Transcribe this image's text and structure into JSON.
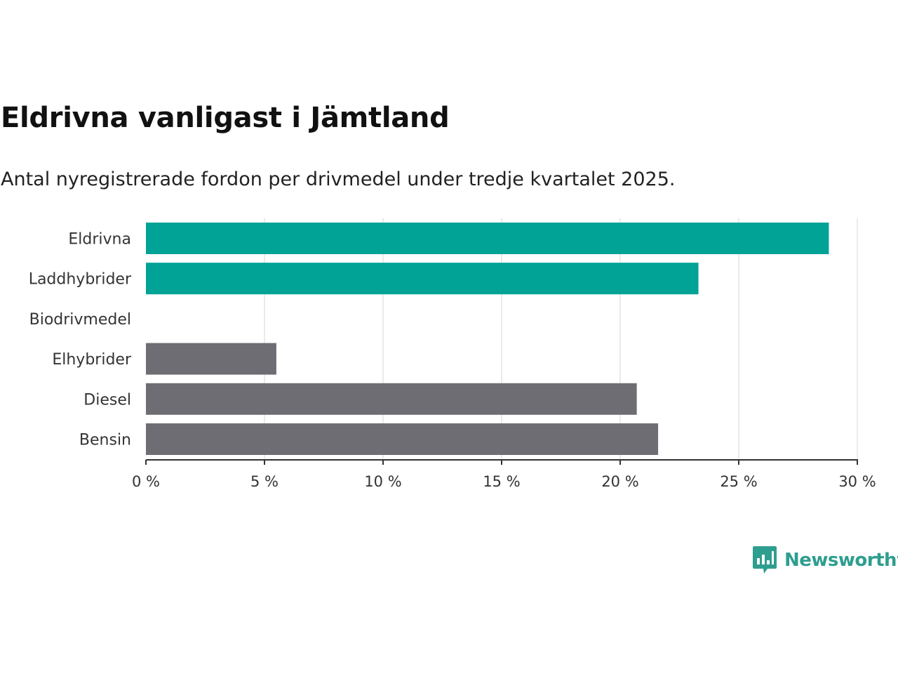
{
  "header": {
    "title": "Eldrivna vanligast i Jämtland",
    "subtitle": "Antal nyregistrerade fordon per drivmedel under tredje kvartalet 2025."
  },
  "chart_data": {
    "type": "bar",
    "orientation": "horizontal",
    "title": "Eldrivna vanligast i Jämtland",
    "subtitle": "Antal nyregistrerade fordon per drivmedel under tredje kvartalet 2025.",
    "xlabel": "",
    "ylabel": "",
    "unit": "%",
    "xlim": [
      0,
      30
    ],
    "ticks": [
      0,
      5,
      10,
      15,
      20,
      25,
      30
    ],
    "tick_labels": [
      "0 %",
      "5 %",
      "10 %",
      "15 %",
      "20 %",
      "25 %",
      "30 %"
    ],
    "grid": true,
    "categories": [
      "Eldrivna",
      "Laddhybrider",
      "Biodrivmedel",
      "Elhybrider",
      "Diesel",
      "Bensin"
    ],
    "values": [
      28.8,
      23.3,
      0,
      5.5,
      20.7,
      21.6
    ],
    "colors": [
      "#00a396",
      "#00a396",
      "#00a396",
      "#6e6d74",
      "#6e6d74",
      "#6e6d74"
    ]
  },
  "brand": {
    "name": "Newsworthy",
    "icon": "newsworthy-logo-icon",
    "color": "#2e9e8f"
  },
  "colors": {
    "highlight": "#00a396",
    "base": "#6e6d74",
    "grid": "#dcdcdc",
    "axis": "#333333"
  }
}
